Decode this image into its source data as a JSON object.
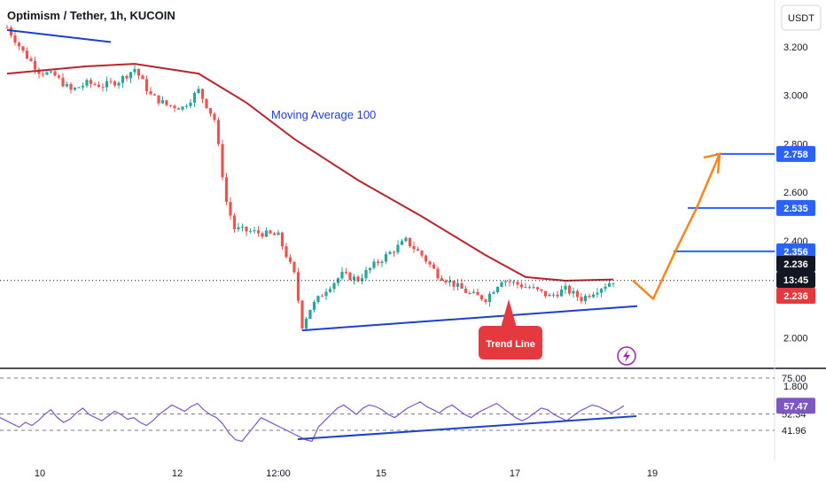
{
  "header": {
    "title": "Optimism / Tether, 1h, KUCOIN",
    "currency": "USDT"
  },
  "colors": {
    "up": "#26a69a",
    "down": "#ef5350",
    "ma": "#b5272d",
    "trend": "#1f3fc9",
    "projection": "#f7861c",
    "level": "#2962ff",
    "rsi": "#7e57c2",
    "last_price_bg": "#131722",
    "red_tag": "#e5393f",
    "callout": "#e5393f"
  },
  "annotations": {
    "ma_label": "Moving Average 100",
    "trend_label": "Trend Line"
  },
  "price_scale": {
    "ticks": [
      "3.200",
      "3.000",
      "2.800",
      "2.600",
      "2.400",
      "2.000",
      "1.800"
    ],
    "tick_values": [
      3.2,
      3.0,
      2.8,
      2.6,
      2.4,
      2.0,
      1.8
    ],
    "tags": [
      {
        "label": "2.758",
        "value": 2.758,
        "style": "blue"
      },
      {
        "label": "2.535",
        "value": 2.535,
        "style": "blue"
      },
      {
        "label": "2.356",
        "value": 2.356,
        "style": "blue"
      },
      {
        "label": "2.236",
        "value": 2.236,
        "style": "dark"
      },
      {
        "label": "13:45",
        "value": 2.236,
        "style": "countdown"
      },
      {
        "label": "2.236",
        "value": 2.236,
        "style": "red"
      }
    ]
  },
  "rsi_scale": {
    "ticks": [
      "75.00",
      "52.34",
      "41.96"
    ],
    "tick_values": [
      75.0,
      52.34,
      41.96
    ],
    "current": {
      "label": "57.47",
      "value": 57.47
    }
  },
  "time_axis": {
    "labels": [
      "10",
      "12",
      "12:00",
      "15",
      "17",
      "19"
    ]
  },
  "chart_data": {
    "type": "candlestick",
    "title": "Optimism / Tether, 1h, KUCOIN",
    "ylim": [
      1.8,
      3.3
    ],
    "x_labels": [
      "10",
      "12",
      "12:00",
      "15",
      "17",
      "19"
    ],
    "price_path": [
      {
        "x": 0,
        "close": 3.28
      },
      {
        "x": 4,
        "close": 3.18
      },
      {
        "x": 8,
        "close": 3.1
      },
      {
        "x": 12,
        "close": 3.08
      },
      {
        "x": 16,
        "close": 3.02
      },
      {
        "x": 20,
        "close": 3.05
      },
      {
        "x": 24,
        "close": 3.04
      },
      {
        "x": 28,
        "close": 3.06
      },
      {
        "x": 32,
        "close": 3.11
      },
      {
        "x": 36,
        "close": 3.0
      },
      {
        "x": 40,
        "close": 2.96
      },
      {
        "x": 44,
        "close": 2.95
      },
      {
        "x": 48,
        "close": 3.02
      },
      {
        "x": 52,
        "close": 2.9
      },
      {
        "x": 55,
        "close": 2.56
      },
      {
        "x": 57,
        "close": 2.45
      },
      {
        "x": 60,
        "close": 2.44
      },
      {
        "x": 64,
        "close": 2.43
      },
      {
        "x": 68,
        "close": 2.42
      },
      {
        "x": 72,
        "close": 2.26
      },
      {
        "x": 74,
        "close": 2.05
      },
      {
        "x": 76,
        "close": 2.12
      },
      {
        "x": 80,
        "close": 2.2
      },
      {
        "x": 84,
        "close": 2.26
      },
      {
        "x": 88,
        "close": 2.24
      },
      {
        "x": 92,
        "close": 2.3
      },
      {
        "x": 96,
        "close": 2.35
      },
      {
        "x": 100,
        "close": 2.4
      },
      {
        "x": 104,
        "close": 2.34
      },
      {
        "x": 108,
        "close": 2.26
      },
      {
        "x": 112,
        "close": 2.22
      },
      {
        "x": 116,
        "close": 2.18
      },
      {
        "x": 120,
        "close": 2.16
      },
      {
        "x": 124,
        "close": 2.24
      },
      {
        "x": 128,
        "close": 2.22
      },
      {
        "x": 132,
        "close": 2.2
      },
      {
        "x": 136,
        "close": 2.17
      },
      {
        "x": 140,
        "close": 2.2
      },
      {
        "x": 144,
        "close": 2.16
      },
      {
        "x": 148,
        "close": 2.2
      },
      {
        "x": 152,
        "close": 2.236
      }
    ],
    "moving_average_100": [
      {
        "x": 0,
        "value": 3.09
      },
      {
        "x": 20,
        "value": 3.12
      },
      {
        "x": 32,
        "value": 3.13
      },
      {
        "x": 48,
        "value": 3.09
      },
      {
        "x": 60,
        "value": 2.97
      },
      {
        "x": 72,
        "value": 2.82
      },
      {
        "x": 88,
        "value": 2.65
      },
      {
        "x": 104,
        "value": 2.5
      },
      {
        "x": 120,
        "value": 2.34
      },
      {
        "x": 130,
        "value": 2.25
      },
      {
        "x": 140,
        "value": 2.235
      },
      {
        "x": 152,
        "value": 2.24
      }
    ],
    "trend_lines": [
      {
        "from": {
          "x": 0,
          "close": 3.27
        },
        "to": {
          "x": 26,
          "close": 3.22
        }
      },
      {
        "from": {
          "x": 74,
          "close": 2.03
        },
        "to": {
          "x": 158,
          "close": 2.13
        }
      }
    ],
    "projection": [
      {
        "x": 153,
        "value": 2.236
      },
      {
        "x": 158,
        "value": 2.16
      },
      {
        "x": 164,
        "value": 2.356
      },
      {
        "x": 170,
        "value": 2.535
      },
      {
        "x": 175,
        "value": 2.758
      }
    ],
    "levels": [
      2.758,
      2.535,
      2.356
    ],
    "rsi": {
      "ylim": [
        30,
        80
      ],
      "current": 57.47,
      "values": [
        50,
        48,
        46,
        44,
        47,
        45,
        48,
        52,
        55,
        50,
        47,
        49,
        53,
        56,
        52,
        50,
        48,
        51,
        54,
        52,
        49,
        50,
        47,
        45,
        48,
        52,
        55,
        58,
        56,
        54,
        57,
        59,
        55,
        52,
        50,
        46,
        40,
        36,
        35,
        40,
        45,
        50,
        48,
        46,
        44,
        42,
        40,
        38,
        36,
        35,
        44,
        48,
        52,
        56,
        58,
        55,
        52,
        56,
        58,
        57,
        55,
        52,
        50,
        53,
        56,
        58,
        60,
        57,
        55,
        53,
        56,
        58,
        55,
        52,
        50,
        53,
        55,
        57,
        59,
        56,
        53,
        50,
        48,
        50,
        53,
        56,
        55,
        52,
        50,
        48,
        51,
        54,
        56,
        58,
        57,
        55,
        53,
        55,
        57.47
      ],
      "trend": {
        "from": 36,
        "to": 48
      }
    }
  }
}
